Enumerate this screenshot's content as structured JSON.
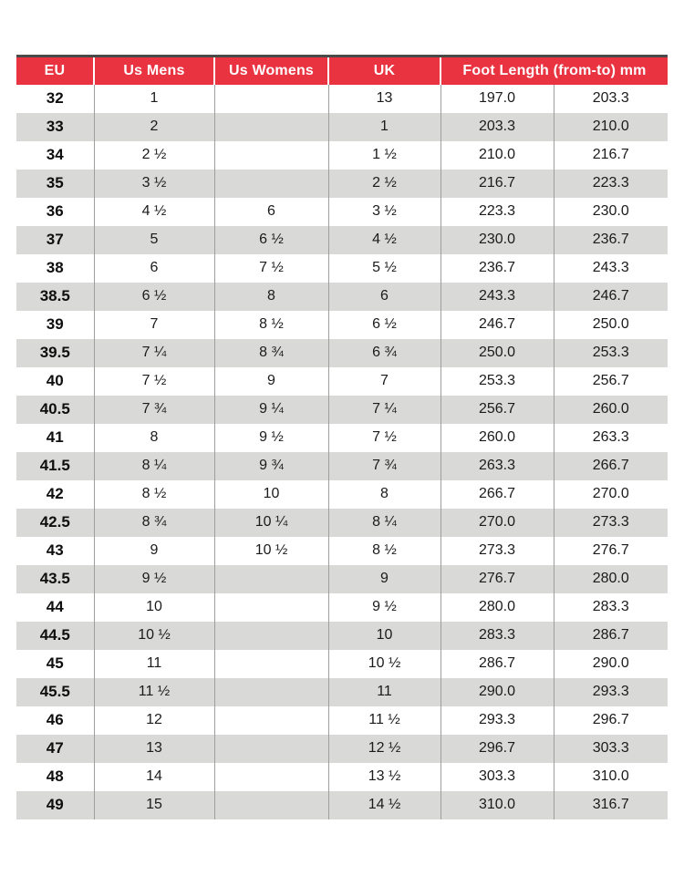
{
  "colors": {
    "header_red": "#E93340",
    "row_gray": "#D9D9D7",
    "top_rule": "#4A4A48",
    "column_border": "#9E9E9C"
  },
  "table": {
    "headers": [
      "EU",
      "Us Mens",
      "Us Womens",
      "UK",
      "Foot Length (from-to) mm"
    ],
    "cell_names": [
      "eu-size-cell",
      "us-mens-cell",
      "us-womens-cell",
      "uk-size-cell",
      "foot-length-from-cell",
      "foot-length-to-cell"
    ],
    "rows": [
      [
        "32",
        "1",
        "",
        "13",
        "197.0",
        "203.3"
      ],
      [
        "33",
        "2",
        "",
        "1",
        "203.3",
        "210.0"
      ],
      [
        "34",
        "2 ½",
        "",
        "1 ½",
        "210.0",
        "216.7"
      ],
      [
        "35",
        "3 ½",
        "",
        "2 ½",
        "216.7",
        "223.3"
      ],
      [
        "36",
        "4 ½",
        "6",
        "3 ½",
        "223.3",
        "230.0"
      ],
      [
        "37",
        "5",
        "6 ½",
        "4 ½",
        "230.0",
        "236.7"
      ],
      [
        "38",
        "6",
        "7 ½",
        "5 ½",
        "236.7",
        "243.3"
      ],
      [
        "38.5",
        "6 ½",
        "8",
        "6",
        "243.3",
        "246.7"
      ],
      [
        "39",
        "7",
        "8 ½",
        "6 ½",
        "246.7",
        "250.0"
      ],
      [
        "39.5",
        "7 ¼",
        "8 ¾",
        "6 ¾",
        "250.0",
        "253.3"
      ],
      [
        "40",
        "7 ½",
        "9",
        "7",
        "253.3",
        "256.7"
      ],
      [
        "40.5",
        "7 ¾",
        "9 ¼",
        "7 ¼",
        "256.7",
        "260.0"
      ],
      [
        "41",
        "8",
        "9 ½",
        "7 ½",
        "260.0",
        "263.3"
      ],
      [
        "41.5",
        "8 ¼",
        "9 ¾",
        "7 ¾",
        "263.3",
        "266.7"
      ],
      [
        "42",
        "8 ½",
        "10",
        "8",
        "266.7",
        "270.0"
      ],
      [
        "42.5",
        "8 ¾",
        "10 ¼",
        "8 ¼",
        "270.0",
        "273.3"
      ],
      [
        "43",
        "9",
        "10 ½",
        "8 ½",
        "273.3",
        "276.7"
      ],
      [
        "43.5",
        "9 ½",
        "",
        "9",
        "276.7",
        "280.0"
      ],
      [
        "44",
        "10",
        "",
        "9 ½",
        "280.0",
        "283.3"
      ],
      [
        "44.5",
        "10 ½",
        "",
        "10",
        "283.3",
        "286.7"
      ],
      [
        "45",
        "11",
        "",
        "10 ½",
        "286.7",
        "290.0"
      ],
      [
        "45.5",
        "11 ½",
        "",
        "11",
        "290.0",
        "293.3"
      ],
      [
        "46",
        "12",
        "",
        "11 ½",
        "293.3",
        "296.7"
      ],
      [
        "47",
        "13",
        "",
        "12 ½",
        "296.7",
        "303.3"
      ],
      [
        "48",
        "14",
        "",
        "13 ½",
        "303.3",
        "310.0"
      ],
      [
        "49",
        "15",
        "",
        "14 ½",
        "310.0",
        "316.7"
      ]
    ]
  }
}
